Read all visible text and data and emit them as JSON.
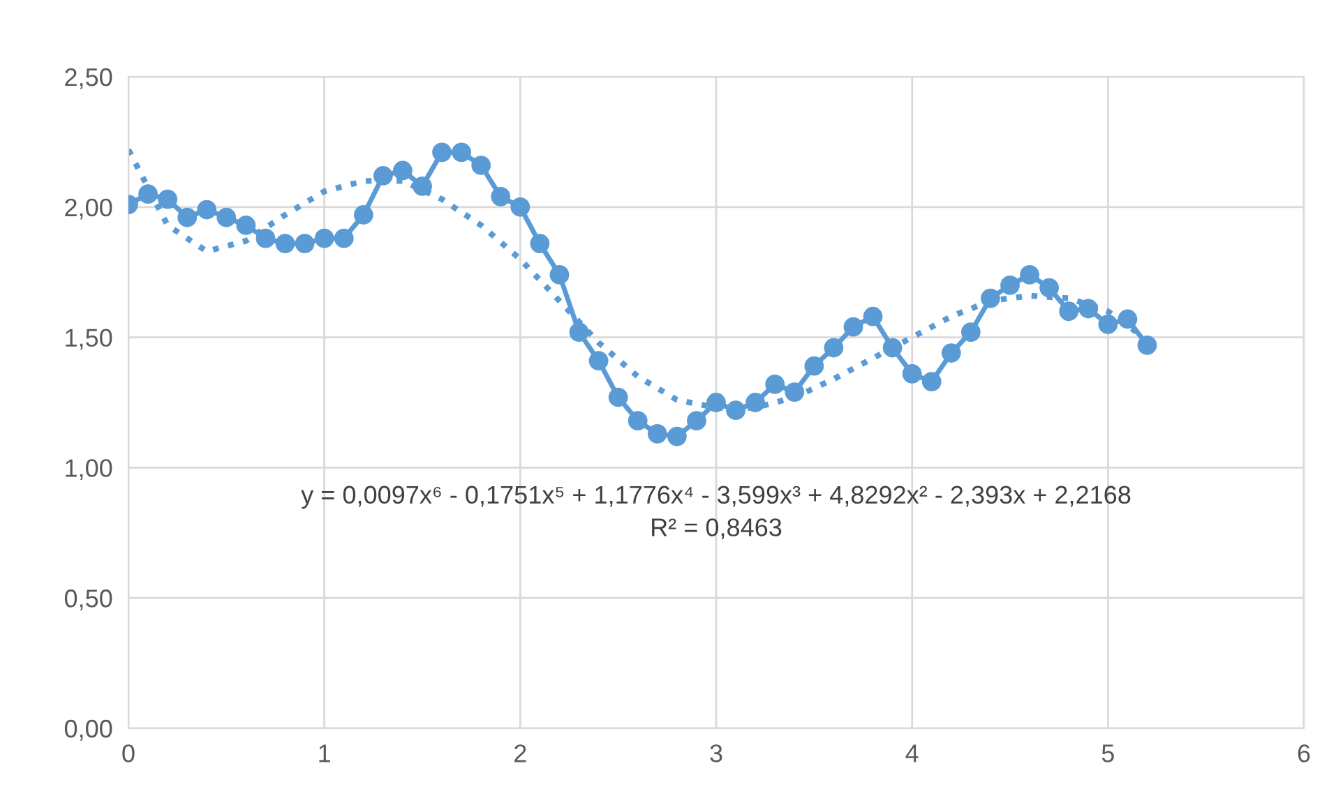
{
  "chart_data": {
    "type": "line",
    "series": [
      {
        "color": "#5b9bd5",
        "marker": "circle",
        "line_style": "solid",
        "x": [
          0,
          0.1,
          0.2,
          0.3,
          0.4,
          0.5,
          0.6,
          0.7,
          0.8,
          0.9,
          1.0,
          1.1,
          1.2,
          1.3,
          1.4,
          1.5,
          1.6,
          1.7,
          1.8,
          1.9,
          2.0,
          2.1,
          2.2,
          2.3,
          2.4,
          2.5,
          2.6,
          2.7,
          2.8,
          2.9,
          3.0,
          3.1,
          3.2,
          3.3,
          3.4,
          3.5,
          3.6,
          3.7,
          3.8,
          3.9,
          4.0,
          4.1,
          4.2,
          4.3,
          4.4,
          4.5,
          4.6,
          4.7,
          4.8,
          4.9,
          5.0,
          5.1,
          5.2
        ],
        "values": [
          2.01,
          2.05,
          2.03,
          1.96,
          1.99,
          1.96,
          1.93,
          1.88,
          1.86,
          1.86,
          1.88,
          1.88,
          1.97,
          2.12,
          2.14,
          2.08,
          2.21,
          2.21,
          2.16,
          2.04,
          2.0,
          1.86,
          1.74,
          1.52,
          1.41,
          1.27,
          1.18,
          1.13,
          1.12,
          1.18,
          1.25,
          1.22,
          1.25,
          1.32,
          1.29,
          1.39,
          1.46,
          1.54,
          1.58,
          1.46,
          1.36,
          1.33,
          1.44,
          1.52,
          1.65,
          1.7,
          1.74,
          1.69,
          1.6,
          1.61,
          1.55,
          1.57,
          1.47
        ]
      },
      {
        "color": "#5b9bd5",
        "marker": "none",
        "line_style": "dotted",
        "x": [
          0,
          0.2,
          0.4,
          0.6,
          0.8,
          1.0,
          1.2,
          1.4,
          1.6,
          1.8,
          2.0,
          2.2,
          2.4,
          2.6,
          2.8,
          3.0,
          3.2,
          3.4,
          3.6,
          3.8,
          4.0,
          4.2,
          4.4,
          4.6,
          4.8,
          5.0,
          5.2
        ],
        "values": [
          2.22,
          1.93,
          1.83,
          1.87,
          1.97,
          2.06,
          2.1,
          2.1,
          2.03,
          1.93,
          1.8,
          1.64,
          1.48,
          1.35,
          1.26,
          1.23,
          1.23,
          1.27,
          1.34,
          1.42,
          1.5,
          1.58,
          1.64,
          1.66,
          1.65,
          1.6,
          1.49
        ]
      }
    ],
    "xlim": [
      0,
      6
    ],
    "xticks": [
      0,
      1,
      2,
      3,
      4,
      5,
      6
    ],
    "ylim": [
      0,
      2.5
    ],
    "yticks": [
      {
        "value": 0,
        "label": "0,00"
      },
      {
        "value": 0.5,
        "label": "0,50"
      },
      {
        "value": 1.0,
        "label": "1,00"
      },
      {
        "value": 1.5,
        "label": "1,50"
      },
      {
        "value": 2.0,
        "label": "2,00"
      },
      {
        "value": 2.5,
        "label": "2,50"
      }
    ],
    "grid": true,
    "legend": false,
    "annotations": [
      "y = 0,0097x⁶ - 0,1751x⁵ + 1,1776x⁴ - 3,599x³ + 4,8292x² - 2,393x + 2,2168",
      "R² = 0,8463"
    ]
  }
}
